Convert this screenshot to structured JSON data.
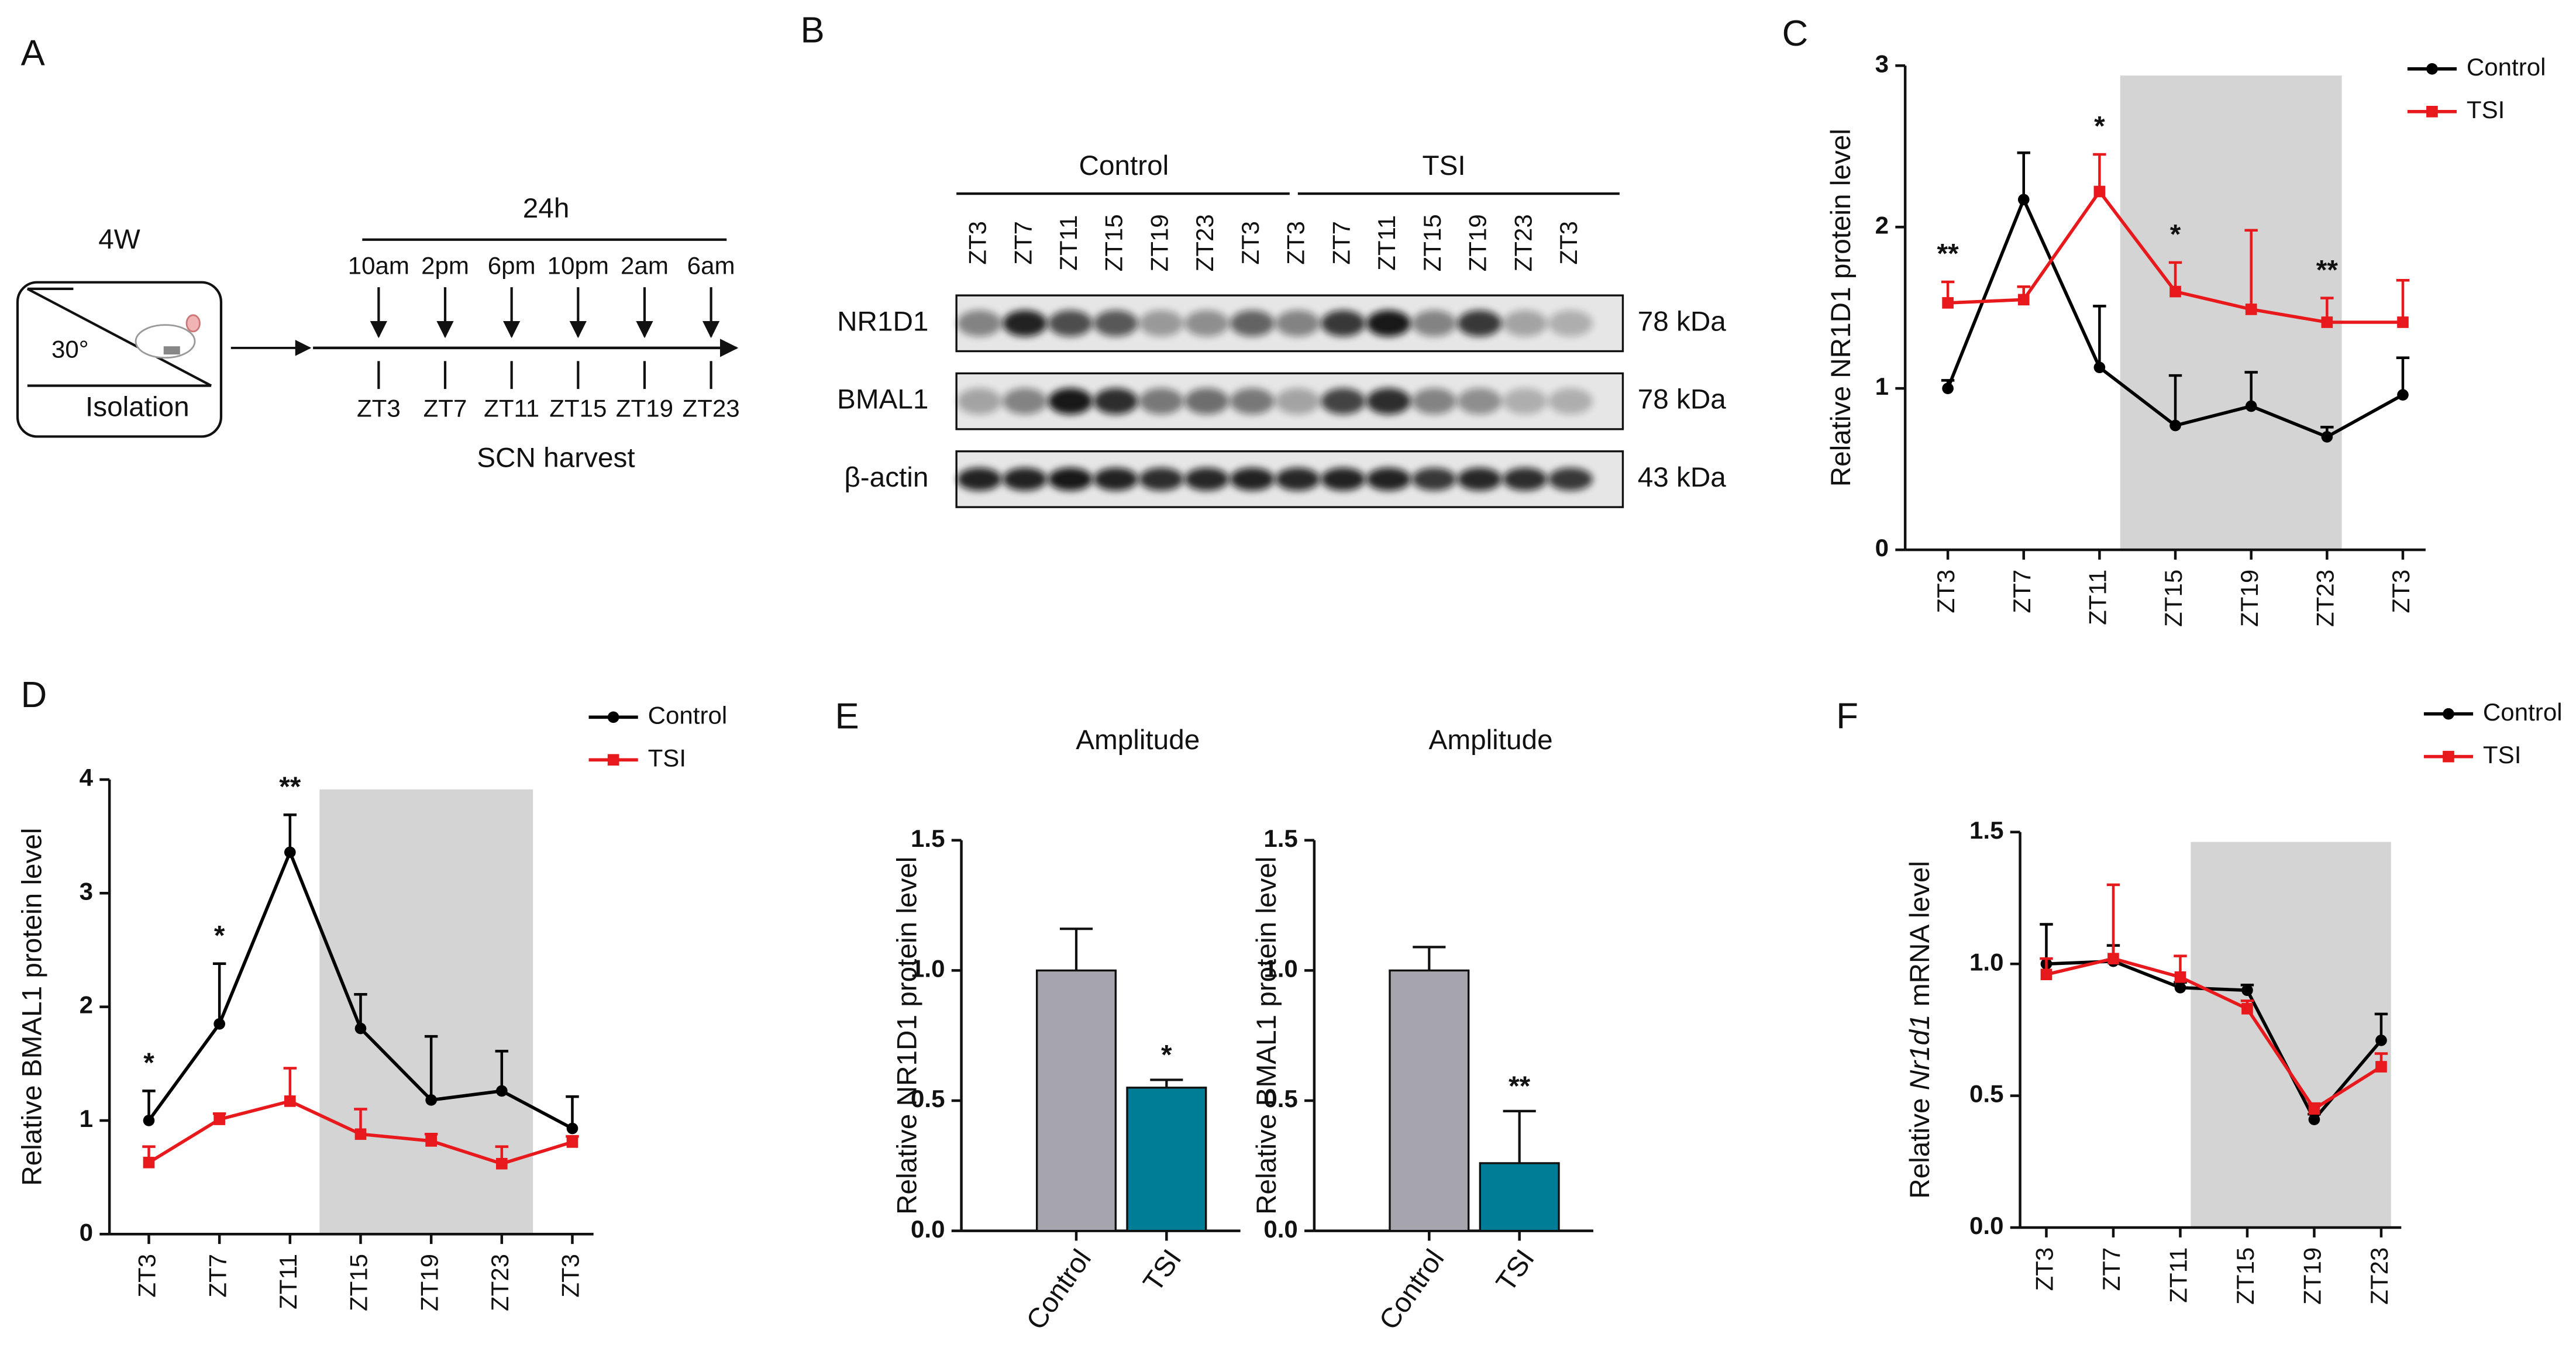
{
  "panel_labels": [
    "A",
    "B",
    "C",
    "D",
    "E",
    "F"
  ],
  "schematic": {
    "age": "4W",
    "angle": "30°",
    "condition": "Isolation",
    "duration": "24h",
    "times": [
      "10am",
      "2pm",
      "6pm",
      "10pm",
      "2am",
      "6am"
    ],
    "zt": [
      "ZT3",
      "ZT7",
      "ZT11",
      "ZT15",
      "ZT19",
      "ZT23"
    ],
    "caption": "SCN harvest"
  },
  "blot": {
    "groups": [
      "Control",
      "TSI"
    ],
    "lanes": [
      "ZT3",
      "ZT7",
      "ZT11",
      "ZT15",
      "ZT19",
      "ZT23",
      "ZT3",
      "ZT3",
      "ZT7",
      "ZT11",
      "ZT15",
      "ZT19",
      "ZT23",
      "ZT3"
    ],
    "rows": [
      {
        "name": "NR1D1",
        "size": "78 kDa"
      },
      {
        "name": "BMAL1",
        "size": "78 kDa"
      },
      {
        "name": "β-actin",
        "size": "43 kDa"
      }
    ]
  },
  "chart_data": [
    {
      "type": "line",
      "y_label": "Relative NR1D1 protein level",
      "categories": [
        "ZT3",
        "ZT7",
        "ZT11",
        "ZT15",
        "ZT19",
        "ZT23",
        "ZT3"
      ],
      "ylim": [
        0,
        3
      ],
      "yticks": [
        0,
        1,
        2,
        3
      ],
      "series": [
        {
          "name": "Control",
          "color": "#000000",
          "marker": "circle",
          "values": [
            1.0,
            2.17,
            1.13,
            0.77,
            0.89,
            0.7,
            0.96
          ],
          "errors": [
            0.05,
            0.29,
            0.38,
            0.31,
            0.21,
            0.06,
            0.23
          ]
        },
        {
          "name": "TSI",
          "color": "#e8191c",
          "marker": "square",
          "values": [
            1.53,
            1.55,
            2.22,
            1.6,
            1.49,
            1.41,
            1.41
          ],
          "errors": [
            0.13,
            0.08,
            0.23,
            0.18,
            0.49,
            0.15,
            0.26
          ]
        }
      ],
      "significance": [
        "**",
        null,
        "*",
        "*",
        null,
        "**",
        null
      ]
    },
    {
      "type": "line",
      "y_label": "Relative BMAL1  protein level",
      "categories": [
        "ZT3",
        "ZT7",
        "ZT11",
        "ZT15",
        "ZT19",
        "ZT23",
        "ZT3"
      ],
      "ylim": [
        0,
        4
      ],
      "yticks": [
        0,
        1,
        2,
        3,
        4
      ],
      "series": [
        {
          "name": "Control",
          "color": "#000000",
          "marker": "circle",
          "values": [
            1.0,
            1.85,
            3.36,
            1.81,
            1.18,
            1.26,
            0.93
          ],
          "errors": [
            0.26,
            0.53,
            0.33,
            0.3,
            0.56,
            0.35,
            0.28
          ]
        },
        {
          "name": "TSI",
          "color": "#e8191c",
          "marker": "square",
          "values": [
            0.63,
            1.01,
            1.17,
            0.88,
            0.82,
            0.62,
            0.81
          ],
          "errors": [
            0.14,
            0.05,
            0.29,
            0.22,
            0.06,
            0.15,
            0.05
          ]
        }
      ],
      "significance": [
        "*",
        "*",
        "**",
        null,
        null,
        null,
        null
      ]
    },
    {
      "type": "bar",
      "title": "Amplitude",
      "y_label": "Relative NR1D1 protein level",
      "categories": [
        "Control",
        "TSI"
      ],
      "values": [
        1.0,
        0.55
      ],
      "errors": [
        0.16,
        0.03
      ],
      "colors": [
        "#a6a4ad",
        "#007d96"
      ],
      "significance": [
        null,
        "*"
      ],
      "ylim": [
        0,
        1.5
      ],
      "yticks": [
        {
          "value": 0,
          "label": "0.0"
        },
        0.5,
        {
          "value": 1,
          "label": "1.0"
        },
        1.5
      ]
    },
    {
      "type": "bar",
      "title": "Amplitude",
      "y_label": "Relative BMAL1 protein level",
      "categories": [
        "Control",
        "TSI"
      ],
      "values": [
        1.0,
        0.26
      ],
      "errors": [
        0.09,
        0.2
      ],
      "colors": [
        "#a6a4ad",
        "#007d96"
      ],
      "significance": [
        null,
        "**"
      ],
      "ylim": [
        0,
        1.5
      ],
      "yticks": [
        {
          "value": 0,
          "label": "0.0"
        },
        0.5,
        {
          "value": 1,
          "label": "1.0"
        },
        1.5
      ]
    },
    {
      "type": "line",
      "y_label": [
        "Relative ",
        "Nr1d1",
        "  mRNA  level"
      ],
      "categories": [
        "ZT3",
        "ZT7",
        "ZT11",
        "ZT15",
        "ZT19",
        "ZT23"
      ],
      "ylim": [
        0,
        1.5
      ],
      "yticks": [
        {
          "value": 0,
          "label": "0.0"
        },
        0.5,
        {
          "value": 1,
          "label": "1.0"
        },
        1.5
      ],
      "series": [
        {
          "name": "Control",
          "color": "#000000",
          "marker": "circle",
          "values": [
            1.0,
            1.01,
            0.91,
            0.9,
            0.41,
            0.71
          ],
          "errors": [
            0.15,
            0.06,
            0.02,
            0.02,
            0.02,
            0.1
          ]
        },
        {
          "name": "TSI",
          "color": "#e8191c",
          "marker": "square",
          "values": [
            0.96,
            1.02,
            0.95,
            0.83,
            0.45,
            0.61
          ],
          "errors": [
            0.06,
            0.28,
            0.08,
            0.03,
            0.02,
            0.05
          ]
        }
      ],
      "significance": [
        null,
        null,
        null,
        null,
        null,
        null
      ]
    }
  ]
}
